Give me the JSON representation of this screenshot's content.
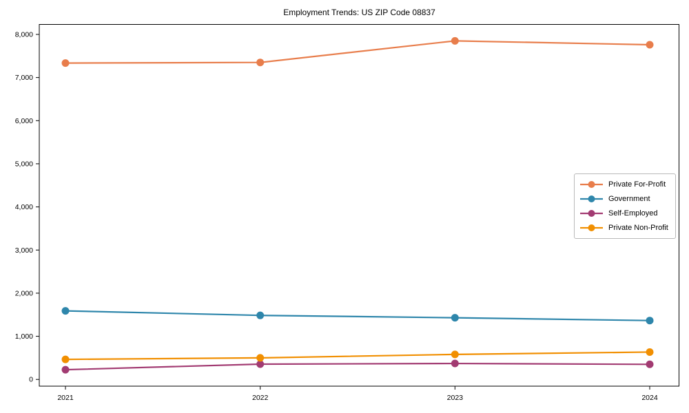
{
  "chart_data": {
    "type": "line",
    "title": "Employment Trends: US ZIP Code 08837",
    "categories": [
      "2021",
      "2022",
      "2023",
      "2024"
    ],
    "series": [
      {
        "name": "Private For-Profit",
        "color": "#E87D4B",
        "values": [
          7335,
          7350,
          7850,
          7760
        ]
      },
      {
        "name": "Government",
        "color": "#2E86AB",
        "values": [
          1590,
          1485,
          1430,
          1365
        ]
      },
      {
        "name": "Self-Employed",
        "color": "#A23B72",
        "values": [
          225,
          355,
          370,
          350
        ]
      },
      {
        "name": "Private Non-Profit",
        "color": "#F18F01",
        "values": [
          465,
          500,
          580,
          635
        ]
      }
    ],
    "xlabel": "",
    "ylabel": "",
    "ylim": [
      -156,
      8231
    ],
    "yticks": [
      0,
      1000,
      2000,
      3000,
      4000,
      5000,
      6000,
      7000,
      8000
    ],
    "ytick_format": "comma",
    "grid": false,
    "legend_position": "center-right",
    "marker": "circle",
    "axes_color": "#000000",
    "background_color": "#ffffff"
  }
}
